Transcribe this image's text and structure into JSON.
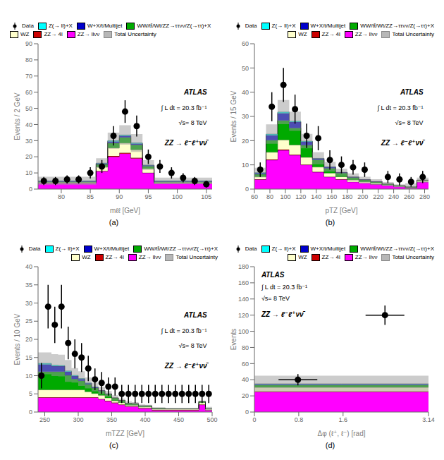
{
  "chart_data": [
    {
      "type": "bar",
      "stacked": true,
      "title": "(a)",
      "x_label": "mℓℓ [GeV]",
      "y_label": "Events / 2 GeV",
      "xlim": [
        76,
        106
      ],
      "ylim": [
        0,
        90
      ],
      "xticks": [
        80,
        85,
        90,
        95,
        100,
        105
      ],
      "yticks": [
        0,
        10,
        20,
        30,
        40,
        50,
        60,
        70,
        80,
        90
      ],
      "grid": false,
      "legend": "upper left",
      "annotations": [
        "ATLAS",
        "∫ L dt = 20.3 fb⁻¹",
        "√s= 8 TeV",
        "ZZ → ℓ⁻ℓ⁺νν̄"
      ],
      "bins": [
        76,
        78,
        80,
        82,
        84,
        86,
        88,
        90,
        92,
        94,
        96,
        98,
        100,
        102,
        104,
        106
      ],
      "series": [
        {
          "name": "Data",
          "type": "scatter",
          "color": "#000000",
          "x": [
            77,
            79,
            81,
            83,
            85,
            87,
            89,
            91,
            93,
            95,
            97,
            99,
            101,
            103,
            105
          ],
          "values": [
            5,
            5,
            6,
            6,
            10,
            14,
            33,
            48,
            39,
            20,
            14,
            10,
            7,
            5,
            3
          ],
          "yerr": [
            2.5,
            2.5,
            2.5,
            2.5,
            3.5,
            4.0,
            6.0,
            7.0,
            6.5,
            4.5,
            4.0,
            3.5,
            2.8,
            2.5,
            2.0
          ]
        },
        {
          "name": "Z(→ ll)+X",
          "color": "#00FFFF",
          "values": [
            0.2,
            0.2,
            0.2,
            0.2,
            0.2,
            0.3,
            0.5,
            0.5,
            0.4,
            0.2,
            0.2,
            0.2,
            0.2,
            0.2,
            0.2
          ]
        },
        {
          "name": "W+X/t/Multijet",
          "color": "#0000CC",
          "values": [
            0.3,
            0.3,
            0.3,
            0.3,
            0.3,
            0.5,
            1.0,
            1.0,
            0.8,
            0.5,
            0.3,
            0.3,
            0.3,
            0.3,
            0.3
          ]
        },
        {
          "name": "WW/tt̄/Wt/ZZ→ττνν/Z(→ττ)+X",
          "color": "#00AA00",
          "values": [
            0.5,
            0.5,
            0.5,
            0.5,
            0.5,
            1.5,
            3.0,
            3.5,
            3.0,
            1.5,
            0.5,
            0.5,
            0.5,
            0.5,
            0.5
          ]
        },
        {
          "name": "WZ",
          "color": "#FFFFCC",
          "values": [
            0.5,
            0.5,
            0.5,
            0.5,
            0.5,
            2.5,
            5.0,
            6.0,
            5.0,
            2.5,
            0.5,
            0.5,
            0.5,
            0.5,
            0.5
          ]
        },
        {
          "name": "ZZ→ 4l",
          "color": "#CC0000",
          "values": [
            0.1,
            0.1,
            0.1,
            0.1,
            0.1,
            0.3,
            0.5,
            0.5,
            0.4,
            0.2,
            0.1,
            0.1,
            0.1,
            0.1,
            0.1
          ]
        },
        {
          "name": "ZZ→ llνν",
          "color": "#FF00FF",
          "values": [
            3.5,
            3.5,
            3.5,
            3.5,
            3.5,
            11,
            20,
            22,
            19,
            10,
            3.5,
            3.5,
            3.5,
            3.5,
            3.5
          ]
        },
        {
          "name": "Total Uncertainty",
          "type": "band",
          "color": "#999999",
          "values": [
            2.5,
            2.5,
            2.5,
            2.5,
            2.5,
            3.0,
            5.0,
            6.0,
            5.5,
            3.0,
            2.0,
            2.0,
            2.0,
            2.0,
            2.0
          ]
        }
      ]
    },
    {
      "type": "bar",
      "stacked": true,
      "title": "(b)",
      "x_label": "pTZ [GeV]",
      "y_label": "Events / 15 GeV",
      "xlim": [
        60,
        285
      ],
      "ylim": [
        0,
        60
      ],
      "xticks": [
        60,
        80,
        100,
        120,
        140,
        160,
        180,
        200,
        220,
        240,
        260,
        280
      ],
      "yticks": [
        0,
        10,
        20,
        30,
        40,
        50,
        60
      ],
      "grid": false,
      "legend": "upper right",
      "annotations": [
        "ATLAS",
        "∫ L dt = 20.3 fb⁻¹",
        "√s= 8 TeV",
        "ZZ → ℓ⁻ℓ⁺νν̄"
      ],
      "bins": [
        60,
        75,
        90,
        105,
        120,
        135,
        150,
        165,
        180,
        195,
        210,
        225,
        240,
        255,
        270,
        285
      ],
      "series": [
        {
          "name": "Data",
          "type": "scatter",
          "color": "#000000",
          "x": [
            67.5,
            82.5,
            97.5,
            112.5,
            127.5,
            142.5,
            157.5,
            172.5,
            187.5,
            202.5,
            232.5,
            247.5,
            262.5,
            277.5
          ],
          "values": [
            8,
            34,
            43,
            33,
            22,
            21,
            12,
            10,
            9,
            8,
            5,
            4,
            3,
            5
          ],
          "yerr": [
            3,
            6,
            7,
            6,
            5,
            5,
            4,
            3.5,
            3,
            3,
            2.5,
            2.5,
            2,
            2.5
          ]
        },
        {
          "name": "Z(→ ll)+X",
          "color": "#00FFFF",
          "values": [
            0.2,
            0.5,
            0.5,
            0.3,
            0.2,
            0.1,
            0.1,
            0.0,
            0.0,
            0.0,
            0.0,
            0.0,
            0.0,
            0.0,
            0.0
          ]
        },
        {
          "name": "W+X/t/Multijet",
          "color": "#0000CC",
          "values": [
            0.5,
            2.0,
            3.0,
            2.5,
            1.5,
            0.5,
            0.5,
            0.3,
            0.2,
            0.1,
            0.1,
            0.0,
            0.0,
            0.0,
            0.0
          ]
        },
        {
          "name": "WW/tt̄/Wt/ZZ→ττνν/Z(→ττ)+X",
          "color": "#00AA00",
          "values": [
            1.0,
            5.0,
            8.0,
            7.0,
            5.0,
            3.0,
            2.0,
            1.5,
            1.0,
            0.8,
            0.5,
            0.3,
            0.2,
            0.2,
            0.2
          ]
        },
        {
          "name": "WZ",
          "color": "#FFFFCC",
          "values": [
            1.0,
            3.0,
            4.0,
            4.0,
            3.0,
            2.0,
            1.5,
            1.0,
            0.8,
            0.5,
            0.5,
            0.3,
            0.2,
            0.2,
            0.5
          ]
        },
        {
          "name": "ZZ→ 4l",
          "color": "#CC0000",
          "values": [
            0.1,
            0.2,
            0.3,
            0.2,
            0.1,
            0.1,
            0.1,
            0.1,
            0.0,
            0.0,
            0.0,
            0.0,
            0.0,
            0.0,
            0.0
          ]
        },
        {
          "name": "ZZ→ llνν",
          "color": "#FF00FF",
          "values": [
            4.0,
            12.0,
            16.0,
            14.0,
            10.0,
            7.0,
            5.0,
            4.0,
            3.0,
            2.5,
            2.0,
            1.5,
            1.0,
            0.5,
            3.0
          ]
        },
        {
          "name": "Total Uncertainty",
          "type": "band",
          "color": "#999999",
          "values": [
            2.0,
            4.0,
            5.0,
            4.0,
            3.0,
            2.5,
            2.0,
            1.5,
            1.5,
            1.2,
            1.0,
            0.8,
            0.6,
            1.5,
            1.0
          ]
        }
      ]
    },
    {
      "type": "bar",
      "stacked": true,
      "title": "(c)",
      "x_label": "mTZZ [GeV]",
      "y_label": "Events / 10 GeV",
      "xlim": [
        240,
        500
      ],
      "ylim": [
        0,
        40
      ],
      "xticks": [
        250,
        300,
        350,
        400,
        450,
        500
      ],
      "yticks": [
        0,
        5,
        10,
        15,
        20,
        25,
        30,
        35,
        40
      ],
      "grid": false,
      "legend": "upper right",
      "annotations": [
        "ATLAS",
        "∫ L dt = 20.3 fb⁻¹",
        "√s= 8 TeV",
        "ZZ → ℓ⁻ℓ⁺νν̄"
      ],
      "bins": [
        240,
        250,
        260,
        270,
        280,
        290,
        300,
        310,
        320,
        330,
        340,
        350,
        360,
        370,
        380,
        390,
        400,
        410,
        420,
        430,
        440,
        450,
        460,
        470,
        480,
        490,
        500
      ],
      "series": [
        {
          "name": "Data",
          "type": "scatter",
          "color": "#000000",
          "x": [
            245,
            255,
            265,
            275,
            285,
            295,
            305,
            315,
            325,
            335,
            345,
            355,
            365,
            375,
            385,
            395,
            405,
            415,
            425,
            435,
            445,
            455,
            465,
            475,
            485,
            495
          ],
          "values": [
            10,
            29,
            24,
            29,
            19,
            16,
            15,
            12,
            9,
            8,
            7,
            7,
            5,
            5,
            5,
            5,
            5,
            5,
            5,
            5,
            5,
            5,
            5,
            5,
            5,
            5
          ],
          "yerr": [
            3.5,
            6,
            5,
            6,
            4.5,
            4,
            4,
            3.5,
            3,
            3,
            2.5,
            2.5,
            2.5,
            2.5,
            2.5,
            2.5,
            2.5,
            2.5,
            2.5,
            2.5,
            2.5,
            2.5,
            2.5,
            2.5,
            2.5,
            2.5
          ]
        },
        {
          "name": "Z(→ ll)+X",
          "color": "#00FFFF",
          "values": [
            0.3,
            0.3,
            0.3,
            0.2,
            0.2,
            0.2,
            0.1,
            0.1,
            0.1,
            0.0,
            0.0,
            0.0,
            0.0,
            0.0,
            0.0,
            0.0,
            0.0,
            0.0,
            0.0,
            0.0,
            0.0,
            0.0,
            0.0,
            0.0,
            0.0,
            0.0
          ]
        },
        {
          "name": "W+X/t/Multijet",
          "color": "#0000CC",
          "values": [
            2.0,
            2.0,
            1.5,
            1.5,
            1.0,
            0.8,
            0.5,
            0.3,
            0.2,
            0.1,
            0.1,
            0.0,
            0.0,
            0.0,
            0.0,
            0.0,
            0.0,
            0.0,
            0.0,
            0.0,
            0.0,
            0.0,
            0.0,
            0.0,
            0.0,
            0.0
          ]
        },
        {
          "name": "WW/tt̄/Wt/ZZ→ττνν/Z(→ττ)+X",
          "color": "#00AA00",
          "values": [
            5.0,
            5.0,
            5.0,
            5.0,
            4.0,
            3.0,
            2.5,
            2.0,
            1.5,
            1.2,
            1.0,
            0.8,
            0.6,
            0.5,
            0.4,
            0.3,
            0.3,
            0.2,
            0.2,
            0.1,
            0.1,
            0.1,
            0.1,
            0.1,
            0.3,
            0.1
          ]
        },
        {
          "name": "WZ",
          "color": "#FFFFCC",
          "values": [
            2.0,
            2.0,
            2.0,
            2.0,
            2.0,
            2.0,
            2.0,
            1.5,
            1.0,
            1.0,
            0.8,
            0.5,
            0.5,
            0.3,
            0.3,
            0.3,
            0.3,
            0.2,
            0.2,
            0.2,
            0.2,
            0.2,
            0.2,
            0.2,
            0.5,
            0.2
          ]
        },
        {
          "name": "ZZ→ 4l",
          "color": "#CC0000",
          "values": [
            0.1,
            0.1,
            0.1,
            0.1,
            0.1,
            0.1,
            0.1,
            0.1,
            0.1,
            0.1,
            0.1,
            0.1,
            0.1,
            0.1,
            0.1,
            0.1,
            0.1,
            0.1,
            0.1,
            0.1,
            0.1,
            0.1,
            0.1,
            0.1,
            0.1,
            0.1
          ]
        },
        {
          "name": "ZZ→ llνν",
          "color": "#FF00FF",
          "values": [
            4.0,
            4.0,
            4.0,
            4.0,
            4.0,
            4.0,
            4.0,
            4.0,
            4.0,
            3.5,
            3.0,
            2.5,
            2.0,
            1.5,
            1.5,
            1.0,
            1.0,
            0.5,
            0.5,
            0.5,
            0.5,
            0.5,
            0.5,
            0.5,
            2.0,
            0.5
          ]
        },
        {
          "name": "Total Uncertainty",
          "type": "band",
          "color": "#999999",
          "values": [
            3.0,
            3.0,
            3.0,
            3.0,
            3.0,
            2.0,
            2.0,
            1.5,
            1.2,
            1.0,
            0.8,
            0.7,
            0.5,
            0.5,
            0.4,
            0.4,
            0.3,
            0.3,
            0.3,
            0.2,
            0.2,
            0.2,
            0.2,
            0.2,
            0.2,
            0.5
          ]
        }
      ]
    },
    {
      "type": "bar",
      "stacked": true,
      "title": "(d)",
      "x_label": "Δφ (ℓ⁺, ℓ⁻) [rad]",
      "y_label": "Events",
      "xlim": [
        0,
        3.14159
      ],
      "ylim": [
        0,
        180
      ],
      "xticks": [
        0,
        0.8,
        1.6,
        {
          "value": 3.14159,
          "label": "3.14"
        }
      ],
      "yticks": [
        0,
        20,
        40,
        60,
        80,
        100,
        120,
        140,
        160,
        180
      ],
      "grid": false,
      "legend": "upper right",
      "annotations": [
        "ATLAS",
        "∫ L dt = 20.3 fb⁻¹",
        "√s= 8 TeV",
        "ZZ → ℓ⁻ℓ⁺νν̄"
      ],
      "bins": [
        0,
        1.5708,
        3.14159
      ],
      "series": [
        {
          "name": "Data",
          "type": "scatter",
          "color": "#000000",
          "x": [
            0.785,
            2.356
          ],
          "values": [
            40,
            120
          ],
          "yerr": [
            7,
            12
          ],
          "xerr": [
            0.35,
            0.35
          ]
        },
        {
          "name": "Z(→ ll)+X",
          "color": "#00FFFF",
          "values": [
            0.5,
            0.5
          ]
        },
        {
          "name": "W+X/t/Multijet",
          "color": "#0000CC",
          "values": [
            1.0,
            1.0
          ]
        },
        {
          "name": "WW/tt̄/Wt/ZZ→ττνν/Z(→ττ)+X",
          "color": "#00AA00",
          "values": [
            3.0,
            3.0
          ]
        },
        {
          "name": "WZ",
          "color": "#FFFFCC",
          "values": [
            5.0,
            5.0
          ]
        },
        {
          "name": "ZZ→ 4l",
          "color": "#CC0000",
          "values": [
            0.5,
            0.5
          ]
        },
        {
          "name": "ZZ→ llνν",
          "color": "#FF00FF",
          "values": [
            25.0,
            25.0
          ]
        },
        {
          "name": "Total Uncertainty",
          "type": "band",
          "color": "#999999",
          "values": [
            10.0,
            10.0
          ]
        }
      ]
    }
  ]
}
